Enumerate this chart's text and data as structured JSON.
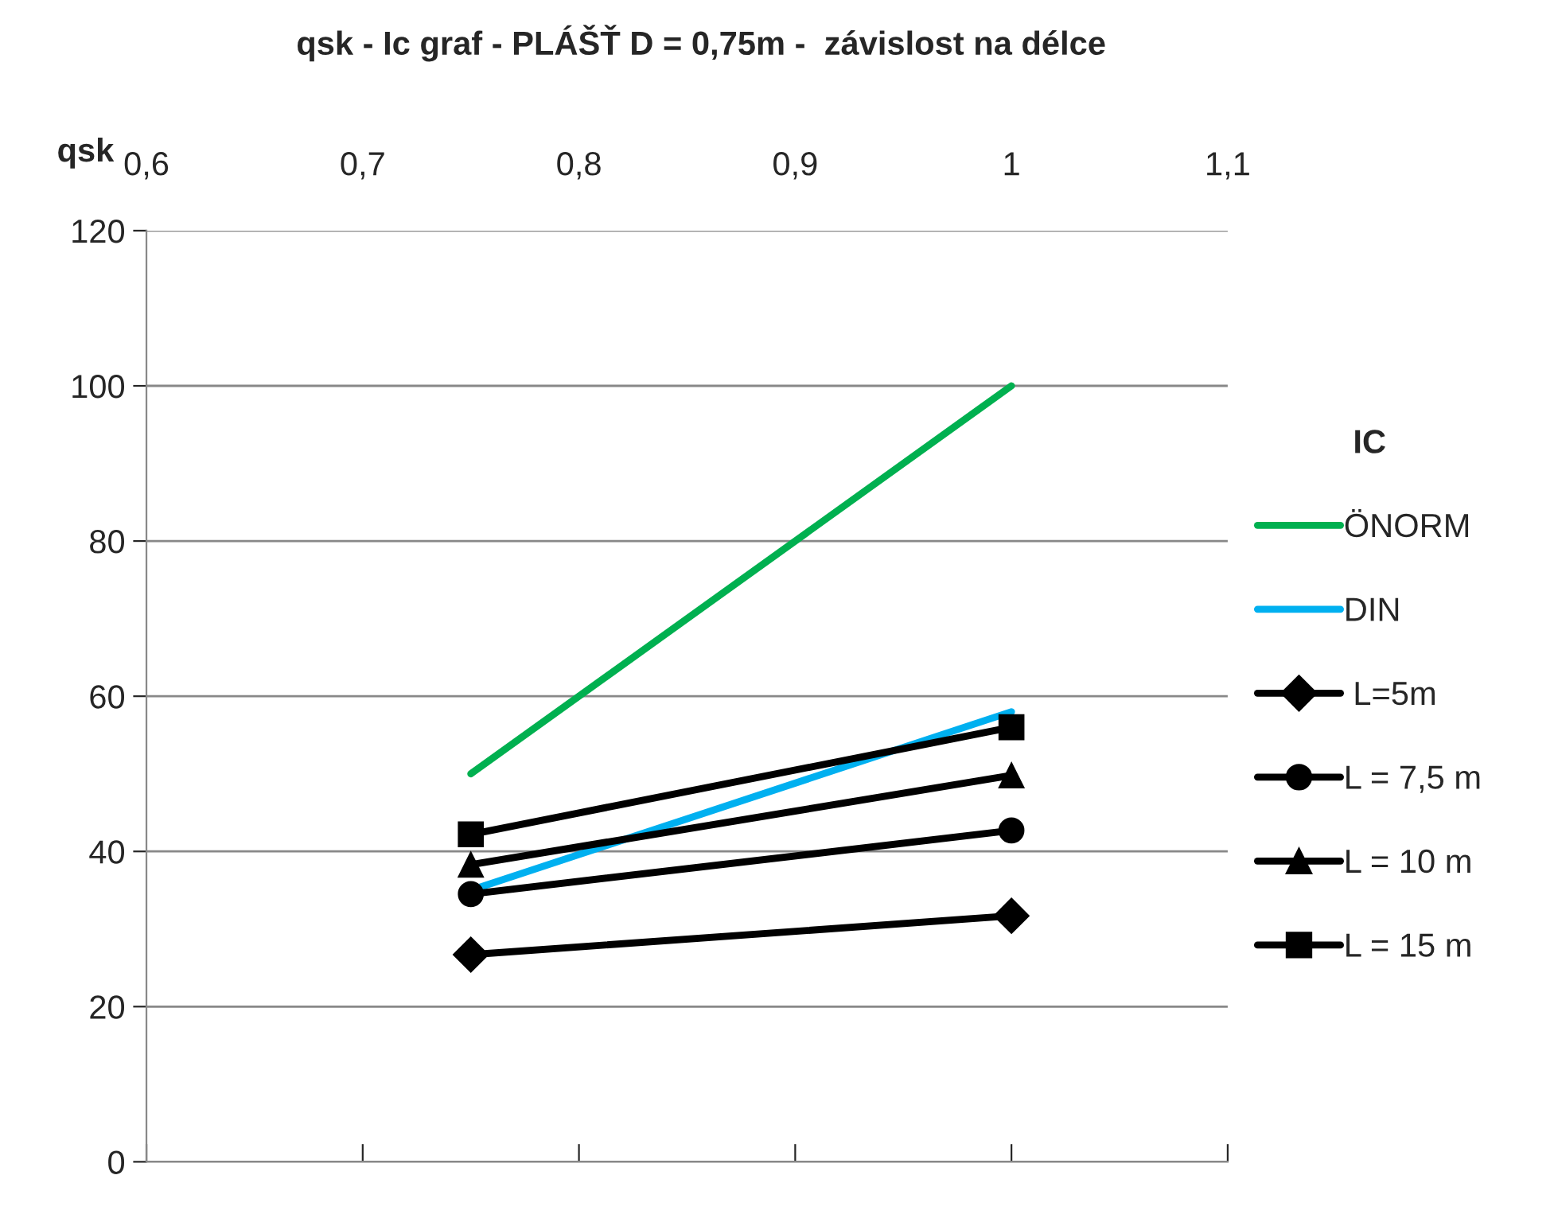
{
  "chart_data": {
    "type": "line",
    "title": "qsk - Ic graf - PLÁŠŤ D = 0,75m -  závislost na délce",
    "xlabel": "qsk",
    "legend_title": "IC",
    "x": [
      0.75,
      1
    ],
    "series": [
      {
        "name": "ÖNORM",
        "color": "#00b050",
        "values": [
          50,
          100
        ],
        "marker": "none"
      },
      {
        "name": "DIN",
        "color": "#00b0f0",
        "values": [
          35,
          58
        ],
        "marker": "none"
      },
      {
        "name": " L=5m",
        "color": "#000000",
        "values": [
          26.7,
          31.7
        ],
        "marker": "diamond"
      },
      {
        "name": "L = 7,5 m",
        "color": "#000000",
        "values": [
          34.5,
          42.7
        ],
        "marker": "circle"
      },
      {
        "name": "L = 10 m",
        "color": "#000000",
        "values": [
          38.3,
          49.8
        ],
        "marker": "triangle"
      },
      {
        "name": "L = 15 m",
        "color": "#000000",
        "values": [
          42.2,
          56
        ],
        "marker": "square"
      }
    ],
    "xlim": [
      0.6,
      1.1
    ],
    "xticks": [
      {
        "value": 0.6,
        "label": "0,6"
      },
      {
        "value": 0.7,
        "label": "0,7"
      },
      {
        "value": 0.8,
        "label": "0,8"
      },
      {
        "value": 0.9,
        "label": "0,9"
      },
      {
        "value": 1,
        "label": "1"
      },
      {
        "value": 1.1,
        "label": "1,1"
      }
    ],
    "ylim": [
      0,
      120
    ],
    "yticks": [
      0,
      20,
      40,
      60,
      80,
      100,
      120
    ],
    "grid": "y",
    "legend": "right"
  }
}
